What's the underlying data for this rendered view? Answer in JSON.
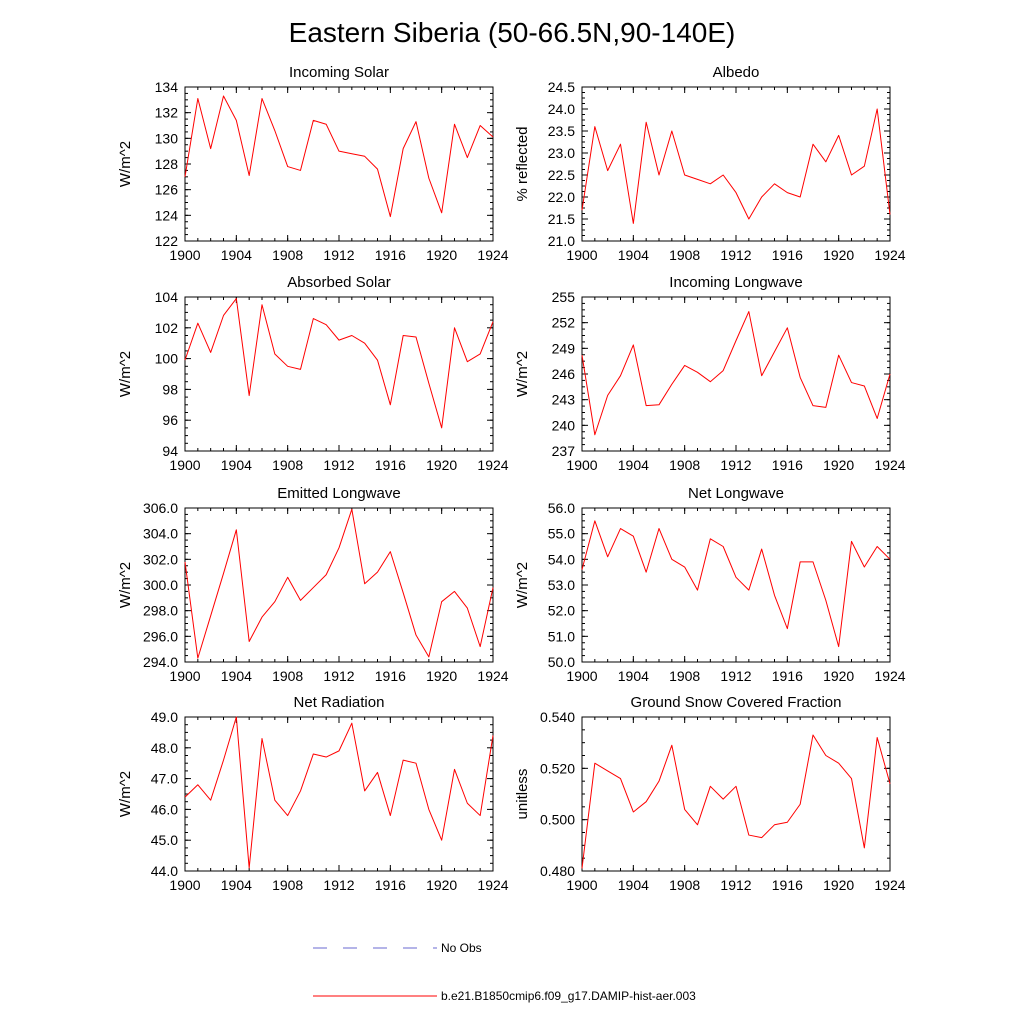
{
  "figure": {
    "title": "Eastern Siberia (50-66.5N,90-140E)"
  },
  "colors": {
    "series": "#ff0000",
    "obs": "#6a6ad0",
    "axis": "#000000"
  },
  "legend": {
    "obs_label": "No Obs",
    "series_label": "b.e21.B1850cmip6.f09_g17.DAMIP-hist-aer.003"
  },
  "chart_data": [
    {
      "type": "line",
      "title": "Incoming Solar",
      "ylabel": "W/m^2",
      "xlim": [
        1900,
        1924
      ],
      "ylim": [
        122,
        134
      ],
      "xticks": [
        1900,
        1904,
        1908,
        1912,
        1916,
        1920,
        1924
      ],
      "xtick_labels": [
        "1900",
        "1904",
        "1908",
        "1912",
        "1916",
        "1920",
        "1924"
      ],
      "yticks": [
        122,
        124,
        126,
        128,
        130,
        132,
        134
      ],
      "ytick_labels": [
        "122",
        "124",
        "126",
        "128",
        "130",
        "132",
        "134"
      ],
      "grid": false,
      "series": [
        {
          "color": "#ff0000",
          "x": [
            1900,
            1901,
            1902,
            1903,
            1904,
            1905,
            1906,
            1907,
            1908,
            1909,
            1910,
            1911,
            1912,
            1913,
            1914,
            1915,
            1916,
            1917,
            1918,
            1919,
            1920,
            1921,
            1922,
            1923,
            1924
          ],
          "values": [
            127.0,
            133.1,
            129.2,
            133.3,
            131.4,
            127.1,
            133.1,
            130.6,
            127.8,
            127.5,
            131.4,
            131.1,
            129.0,
            128.8,
            128.6,
            127.6,
            123.9,
            129.2,
            131.3,
            126.9,
            124.2,
            131.1,
            128.5,
            131.0,
            130.1
          ]
        }
      ]
    },
    {
      "type": "line",
      "title": "Albedo",
      "ylabel": "% reflected",
      "xlim": [
        1900,
        1924
      ],
      "ylim": [
        21.0,
        24.5
      ],
      "xticks": [
        1900,
        1904,
        1908,
        1912,
        1916,
        1920,
        1924
      ],
      "xtick_labels": [
        "1900",
        "1904",
        "1908",
        "1912",
        "1916",
        "1920",
        "1924"
      ],
      "yticks": [
        21.0,
        21.5,
        22.0,
        22.5,
        23.0,
        23.5,
        24.0,
        24.5
      ],
      "ytick_labels": [
        "21.0",
        "21.5",
        "22.0",
        "22.5",
        "23.0",
        "23.5",
        "24.0",
        "24.5"
      ],
      "grid": false,
      "series": [
        {
          "color": "#ff0000",
          "x": [
            1900,
            1901,
            1902,
            1903,
            1904,
            1905,
            1906,
            1907,
            1908,
            1909,
            1910,
            1911,
            1912,
            1913,
            1914,
            1915,
            1916,
            1917,
            1918,
            1919,
            1920,
            1921,
            1922,
            1923,
            1924
          ],
          "values": [
            21.7,
            23.6,
            22.6,
            23.2,
            21.4,
            23.7,
            22.5,
            23.5,
            22.5,
            22.4,
            22.3,
            22.5,
            22.1,
            21.5,
            22.0,
            22.3,
            22.1,
            22.0,
            23.2,
            22.8,
            23.4,
            22.5,
            22.7,
            24.0,
            21.6
          ]
        }
      ]
    },
    {
      "type": "line",
      "title": "Absorbed Solar",
      "ylabel": "W/m^2",
      "xlim": [
        1900,
        1924
      ],
      "ylim": [
        94,
        104
      ],
      "xticks": [
        1900,
        1904,
        1908,
        1912,
        1916,
        1920,
        1924
      ],
      "xtick_labels": [
        "1900",
        "1904",
        "1908",
        "1912",
        "1916",
        "1920",
        "1924"
      ],
      "yticks": [
        94,
        96,
        98,
        100,
        102,
        104
      ],
      "ytick_labels": [
        "94",
        "96",
        "98",
        "100",
        "102",
        "104"
      ],
      "grid": false,
      "series": [
        {
          "color": "#ff0000",
          "x": [
            1900,
            1901,
            1902,
            1903,
            1904,
            1905,
            1906,
            1907,
            1908,
            1909,
            1910,
            1911,
            1912,
            1913,
            1914,
            1915,
            1916,
            1917,
            1918,
            1919,
            1920,
            1921,
            1922,
            1923,
            1924
          ],
          "values": [
            99.9,
            102.3,
            100.4,
            102.8,
            103.9,
            97.6,
            103.5,
            100.3,
            99.5,
            99.3,
            102.6,
            102.2,
            101.2,
            101.5,
            101.0,
            99.9,
            97.0,
            101.5,
            101.4,
            98.4,
            95.5,
            102.0,
            99.8,
            100.3,
            102.4
          ]
        }
      ]
    },
    {
      "type": "line",
      "title": "Incoming Longwave",
      "ylabel": "W/m^2",
      "xlim": [
        1900,
        1924
      ],
      "ylim": [
        237,
        255
      ],
      "xticks": [
        1900,
        1904,
        1908,
        1912,
        1916,
        1920,
        1924
      ],
      "xtick_labels": [
        "1900",
        "1904",
        "1908",
        "1912",
        "1916",
        "1920",
        "1924"
      ],
      "yticks": [
        237,
        240,
        243,
        246,
        249,
        252,
        255
      ],
      "ytick_labels": [
        "237",
        "240",
        "243",
        "246",
        "249",
        "252",
        "255"
      ],
      "grid": false,
      "series": [
        {
          "color": "#ff0000",
          "x": [
            1900,
            1901,
            1902,
            1903,
            1904,
            1905,
            1906,
            1907,
            1908,
            1909,
            1910,
            1911,
            1912,
            1913,
            1914,
            1915,
            1916,
            1917,
            1918,
            1919,
            1920,
            1921,
            1922,
            1923,
            1924
          ],
          "values": [
            248.2,
            238.9,
            243.5,
            245.8,
            249.4,
            242.3,
            242.4,
            244.8,
            247.0,
            246.2,
            245.1,
            246.4,
            249.9,
            253.3,
            245.8,
            248.6,
            251.4,
            245.6,
            242.3,
            242.1,
            248.2,
            245.0,
            244.6,
            240.8,
            246.0
          ]
        }
      ]
    },
    {
      "type": "line",
      "title": "Emitted Longwave",
      "ylabel": "W/m^2",
      "xlim": [
        1900,
        1924
      ],
      "ylim": [
        294.0,
        306.0
      ],
      "xticks": [
        1900,
        1904,
        1908,
        1912,
        1916,
        1920,
        1924
      ],
      "xtick_labels": [
        "1900",
        "1904",
        "1908",
        "1912",
        "1916",
        "1920",
        "1924"
      ],
      "yticks": [
        294.0,
        296.0,
        298.0,
        300.0,
        302.0,
        304.0,
        306.0
      ],
      "ytick_labels": [
        "294.0",
        "296.0",
        "298.0",
        "300.0",
        "302.0",
        "304.0",
        "306.0"
      ],
      "grid": false,
      "series": [
        {
          "color": "#ff0000",
          "x": [
            1900,
            1901,
            1902,
            1903,
            1904,
            1905,
            1906,
            1907,
            1908,
            1909,
            1910,
            1911,
            1912,
            1913,
            1914,
            1915,
            1916,
            1917,
            1918,
            1919,
            1920,
            1921,
            1922,
            1923,
            1924
          ],
          "values": [
            301.8,
            294.3,
            297.6,
            300.9,
            304.3,
            295.6,
            297.5,
            298.7,
            300.6,
            298.8,
            299.8,
            300.8,
            302.9,
            305.9,
            300.1,
            301.0,
            302.6,
            299.4,
            296.1,
            294.4,
            298.7,
            299.5,
            298.2,
            295.2,
            299.8
          ]
        }
      ]
    },
    {
      "type": "line",
      "title": "Net Longwave",
      "ylabel": "W/m^2",
      "xlim": [
        1900,
        1924
      ],
      "ylim": [
        50.0,
        56.0
      ],
      "xticks": [
        1900,
        1904,
        1908,
        1912,
        1916,
        1920,
        1924
      ],
      "xtick_labels": [
        "1900",
        "1904",
        "1908",
        "1912",
        "1916",
        "1920",
        "1924"
      ],
      "yticks": [
        50.0,
        51.0,
        52.0,
        53.0,
        54.0,
        55.0,
        56.0
      ],
      "ytick_labels": [
        "50.0",
        "51.0",
        "52.0",
        "53.0",
        "54.0",
        "55.0",
        "56.0"
      ],
      "grid": false,
      "series": [
        {
          "color": "#ff0000",
          "x": [
            1900,
            1901,
            1902,
            1903,
            1904,
            1905,
            1906,
            1907,
            1908,
            1909,
            1910,
            1911,
            1912,
            1913,
            1914,
            1915,
            1916,
            1917,
            1918,
            1919,
            1920,
            1921,
            1922,
            1923,
            1924
          ],
          "values": [
            53.6,
            55.5,
            54.1,
            55.2,
            54.9,
            53.5,
            55.2,
            54.0,
            53.7,
            52.8,
            54.8,
            54.5,
            53.3,
            52.8,
            54.4,
            52.6,
            51.3,
            53.9,
            53.9,
            52.4,
            50.6,
            54.7,
            53.7,
            54.5,
            54.0
          ]
        }
      ]
    },
    {
      "type": "line",
      "title": "Net Radiation",
      "ylabel": "W/m^2",
      "xlim": [
        1900,
        1924
      ],
      "ylim": [
        44.0,
        49.0
      ],
      "xticks": [
        1900,
        1904,
        1908,
        1912,
        1916,
        1920,
        1924
      ],
      "xtick_labels": [
        "1900",
        "1904",
        "1908",
        "1912",
        "1916",
        "1920",
        "1924"
      ],
      "yticks": [
        44.0,
        45.0,
        46.0,
        47.0,
        48.0,
        49.0
      ],
      "ytick_labels": [
        "44.0",
        "45.0",
        "46.0",
        "47.0",
        "48.0",
        "49.0"
      ],
      "grid": false,
      "series": [
        {
          "color": "#ff0000",
          "x": [
            1900,
            1901,
            1902,
            1903,
            1904,
            1905,
            1906,
            1907,
            1908,
            1909,
            1910,
            1911,
            1912,
            1913,
            1914,
            1915,
            1916,
            1917,
            1918,
            1919,
            1920,
            1921,
            1922,
            1923,
            1924
          ],
          "values": [
            46.4,
            46.8,
            46.3,
            47.6,
            49.0,
            44.1,
            48.3,
            46.3,
            45.8,
            46.6,
            47.8,
            47.7,
            47.9,
            48.8,
            46.6,
            47.2,
            45.8,
            47.6,
            47.5,
            46.0,
            45.0,
            47.3,
            46.2,
            45.8,
            48.4
          ]
        }
      ]
    },
    {
      "type": "line",
      "title": "Ground Snow Covered Fraction",
      "ylabel": "unitless",
      "xlim": [
        1900,
        1924
      ],
      "ylim": [
        0.48,
        0.54
      ],
      "xticks": [
        1900,
        1904,
        1908,
        1912,
        1916,
        1920,
        1924
      ],
      "xtick_labels": [
        "1900",
        "1904",
        "1908",
        "1912",
        "1916",
        "1920",
        "1924"
      ],
      "yticks": [
        0.48,
        0.5,
        0.52,
        0.54
      ],
      "ytick_labels": [
        "0.480",
        "0.500",
        "0.520",
        "0.540"
      ],
      "grid": false,
      "series": [
        {
          "color": "#ff0000",
          "x": [
            1900,
            1901,
            1902,
            1903,
            1904,
            1905,
            1906,
            1907,
            1908,
            1909,
            1910,
            1911,
            1912,
            1913,
            1914,
            1915,
            1916,
            1917,
            1918,
            1919,
            1920,
            1921,
            1922,
            1923,
            1924
          ],
          "values": [
            0.481,
            0.522,
            0.519,
            0.516,
            0.503,
            0.507,
            0.515,
            0.529,
            0.504,
            0.498,
            0.513,
            0.508,
            0.513,
            0.494,
            0.493,
            0.498,
            0.499,
            0.506,
            0.533,
            0.525,
            0.522,
            0.516,
            0.489,
            0.532,
            0.514
          ]
        }
      ]
    }
  ]
}
